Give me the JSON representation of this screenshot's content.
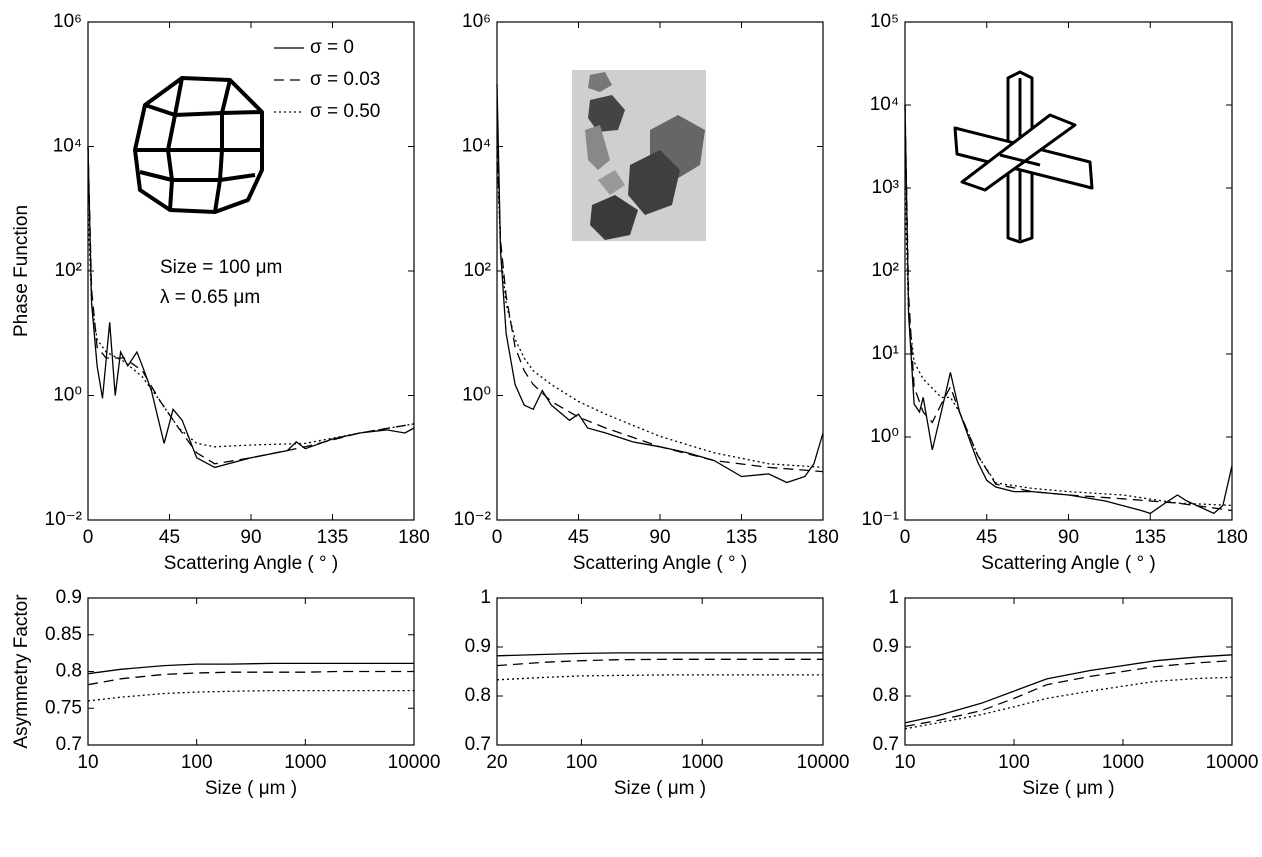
{
  "chart_data": [
    {
      "type": "line",
      "ylog": true,
      "xlabel": "Scattering Angle ( ° )",
      "ylabel": "Phase Function",
      "xlim": [
        0,
        180
      ],
      "xticks": [
        0,
        45,
        90,
        135,
        180
      ],
      "ylim": [
        0.01,
        1000000
      ],
      "yticks": [
        {
          "value": 0.01,
          "label": "10⁻²"
        },
        {
          "value": 1,
          "label": "10⁰"
        },
        {
          "value": 100,
          "label": "10²"
        },
        {
          "value": 10000,
          "label": "10⁴"
        },
        {
          "value": 1000000,
          "label": "10⁶"
        }
      ],
      "legend": "upper right",
      "annotations": [
        "Size = 100 μm",
        "λ = 0.65 μm"
      ],
      "series": [
        {
          "name": "σ = 0",
          "dash": "solid",
          "x": [
            0,
            2,
            5,
            8,
            12,
            15,
            18,
            22,
            27,
            30,
            35,
            42,
            47,
            52,
            60,
            70,
            90,
            110,
            115,
            120,
            135,
            150,
            165,
            175,
            180
          ],
          "values": [
            10000,
            30,
            3,
            0.9,
            15,
            1,
            5,
            3,
            5,
            3,
            1.2,
            0.17,
            0.6,
            0.4,
            0.1,
            0.07,
            0.1,
            0.13,
            0.18,
            0.14,
            0.2,
            0.25,
            0.28,
            0.25,
            0.3
          ]
        },
        {
          "name": "σ = 0.03",
          "dash": "dashed",
          "x": [
            0,
            2,
            5,
            10,
            20,
            30,
            40,
            50,
            60,
            70,
            90,
            120,
            150,
            180
          ],
          "values": [
            10000,
            50,
            6,
            4,
            4,
            2.5,
            0.8,
            0.3,
            0.12,
            0.08,
            0.1,
            0.15,
            0.25,
            0.35
          ]
        },
        {
          "name": "σ = 0.50",
          "dash": "dotted",
          "x": [
            0,
            2,
            5,
            10,
            20,
            30,
            40,
            50,
            60,
            70,
            90,
            120,
            150,
            180
          ],
          "values": [
            1000,
            30,
            8,
            5,
            3.5,
            2,
            0.8,
            0.3,
            0.17,
            0.15,
            0.16,
            0.17,
            0.25,
            0.35
          ]
        }
      ]
    },
    {
      "type": "line",
      "ylog": true,
      "xlabel": "Scattering Angle ( ° )",
      "xlim": [
        0,
        180
      ],
      "xticks": [
        0,
        45,
        90,
        135,
        180
      ],
      "ylim": [
        0.01,
        1000000
      ],
      "yticks": [
        {
          "value": 0.01,
          "label": "10⁻²"
        },
        {
          "value": 1,
          "label": "10⁰"
        },
        {
          "value": 100,
          "label": "10²"
        },
        {
          "value": 10000,
          "label": "10⁴"
        },
        {
          "value": 1000000,
          "label": "10⁶"
        }
      ],
      "series": [
        {
          "dash": "solid",
          "x": [
            0,
            2,
            5,
            10,
            15,
            20,
            25,
            30,
            40,
            45,
            50,
            60,
            75,
            90,
            105,
            120,
            135,
            150,
            160,
            170,
            175,
            180
          ],
          "values": [
            100000,
            200,
            10,
            1.5,
            0.7,
            0.6,
            1.2,
            0.7,
            0.4,
            0.5,
            0.3,
            0.25,
            0.18,
            0.15,
            0.12,
            0.09,
            0.05,
            0.055,
            0.04,
            0.05,
            0.08,
            0.25
          ]
        },
        {
          "dash": "dashed",
          "x": [
            0,
            2,
            5,
            10,
            15,
            20,
            30,
            45,
            60,
            90,
            120,
            150,
            180
          ],
          "values": [
            10000,
            300,
            40,
            6,
            2.5,
            1.5,
            0.8,
            0.45,
            0.3,
            0.15,
            0.09,
            0.07,
            0.06
          ]
        },
        {
          "dash": "dotted",
          "x": [
            0,
            2,
            5,
            10,
            15,
            20,
            30,
            45,
            60,
            90,
            120,
            150,
            180
          ],
          "values": [
            10000,
            200,
            30,
            8,
            4,
            2.5,
            1.5,
            0.8,
            0.5,
            0.22,
            0.12,
            0.08,
            0.07
          ]
        }
      ]
    },
    {
      "type": "line",
      "ylog": true,
      "xlabel": "Scattering Angle ( ° )",
      "xlim": [
        0,
        180
      ],
      "xticks": [
        0,
        45,
        90,
        135,
        180
      ],
      "ylim": [
        0.1,
        100000
      ],
      "yticks": [
        {
          "value": 0.1,
          "label": "10⁻¹"
        },
        {
          "value": 1,
          "label": "10⁰"
        },
        {
          "value": 10,
          "label": "10¹"
        },
        {
          "value": 100,
          "label": "10²"
        },
        {
          "value": 1000,
          "label": "10³"
        },
        {
          "value": 10000,
          "label": "10⁴"
        },
        {
          "value": 100000,
          "label": "10⁵"
        }
      ],
      "series": [
        {
          "dash": "solid",
          "x": [
            0,
            2,
            5,
            8,
            10,
            15,
            20,
            25,
            30,
            35,
            40,
            45,
            50,
            60,
            70,
            90,
            110,
            130,
            135,
            145,
            150,
            155,
            170,
            175,
            180
          ],
          "values": [
            10000,
            30,
            2.5,
            2,
            3,
            0.7,
            2,
            6,
            2,
            1,
            0.5,
            0.3,
            0.25,
            0.22,
            0.22,
            0.2,
            0.17,
            0.13,
            0.12,
            0.17,
            0.2,
            0.17,
            0.12,
            0.15,
            0.45
          ]
        },
        {
          "dash": "dashed",
          "x": [
            0,
            2,
            5,
            10,
            15,
            20,
            25,
            30,
            40,
            50,
            70,
            90,
            120,
            150,
            180
          ],
          "values": [
            10000,
            50,
            4,
            2,
            1.5,
            2.5,
            4,
            2,
            0.6,
            0.27,
            0.22,
            0.2,
            0.18,
            0.16,
            0.13
          ]
        },
        {
          "dash": "dotted",
          "x": [
            0,
            2,
            5,
            10,
            20,
            25,
            30,
            40,
            50,
            70,
            90,
            120,
            150,
            180
          ],
          "values": [
            1000,
            30,
            8,
            5,
            3,
            3,
            2,
            0.6,
            0.28,
            0.24,
            0.22,
            0.2,
            0.16,
            0.15
          ]
        }
      ]
    },
    {
      "type": "line",
      "xlog": true,
      "xlabel": "Size ( μm )",
      "ylabel": "Asymmetry Factor",
      "xlim": [
        10,
        10000
      ],
      "xticks": [
        10,
        100,
        1000,
        10000
      ],
      "ylim": [
        0.7,
        0.9
      ],
      "yticks": [
        0.7,
        0.75,
        0.8,
        0.85,
        0.9
      ],
      "x": [
        10,
        20,
        50,
        100,
        200,
        500,
        1000,
        2000,
        5000,
        10000
      ],
      "series": [
        {
          "dash": "solid",
          "values": [
            0.797,
            0.803,
            0.808,
            0.81,
            0.81,
            0.811,
            0.811,
            0.811,
            0.811,
            0.811
          ]
        },
        {
          "dash": "dashed",
          "values": [
            0.782,
            0.79,
            0.796,
            0.798,
            0.799,
            0.799,
            0.799,
            0.8,
            0.8,
            0.8
          ]
        },
        {
          "dash": "dotted",
          "values": [
            0.76,
            0.765,
            0.77,
            0.772,
            0.773,
            0.774,
            0.774,
            0.774,
            0.774,
            0.774
          ]
        }
      ]
    },
    {
      "type": "line",
      "xlog": true,
      "xlabel": "Size ( μm )",
      "xlim": [
        20,
        10000
      ],
      "xticks": [
        20,
        100,
        1000,
        10000
      ],
      "ylim": [
        0.7,
        1
      ],
      "yticks": [
        0.7,
        0.8,
        0.9,
        1
      ],
      "x": [
        20,
        50,
        100,
        200,
        500,
        1000,
        2000,
        5000,
        10000
      ],
      "series": [
        {
          "dash": "solid",
          "values": [
            0.882,
            0.885,
            0.887,
            0.888,
            0.888,
            0.888,
            0.888,
            0.888,
            0.888
          ]
        },
        {
          "dash": "dashed",
          "values": [
            0.862,
            0.869,
            0.872,
            0.874,
            0.875,
            0.875,
            0.875,
            0.875,
            0.875
          ]
        },
        {
          "dash": "dotted",
          "values": [
            0.833,
            0.838,
            0.841,
            0.842,
            0.843,
            0.843,
            0.843,
            0.843,
            0.843
          ]
        }
      ]
    },
    {
      "type": "line",
      "xlog": true,
      "xlabel": "Size ( μm )",
      "xlim": [
        10,
        10000
      ],
      "xticks": [
        10,
        100,
        1000,
        10000
      ],
      "ylim": [
        0.7,
        1
      ],
      "yticks": [
        0.7,
        0.8,
        0.9,
        1
      ],
      "x": [
        10,
        20,
        50,
        100,
        200,
        500,
        1000,
        2000,
        5000,
        10000
      ],
      "series": [
        {
          "dash": "solid",
          "values": [
            0.745,
            0.76,
            0.785,
            0.81,
            0.835,
            0.852,
            0.862,
            0.872,
            0.88,
            0.884
          ]
        },
        {
          "dash": "dashed",
          "values": [
            0.738,
            0.75,
            0.77,
            0.795,
            0.823,
            0.84,
            0.85,
            0.86,
            0.868,
            0.872
          ]
        },
        {
          "dash": "dotted",
          "values": [
            0.733,
            0.745,
            0.762,
            0.778,
            0.795,
            0.81,
            0.82,
            0.83,
            0.836,
            0.838
          ]
        }
      ]
    }
  ]
}
